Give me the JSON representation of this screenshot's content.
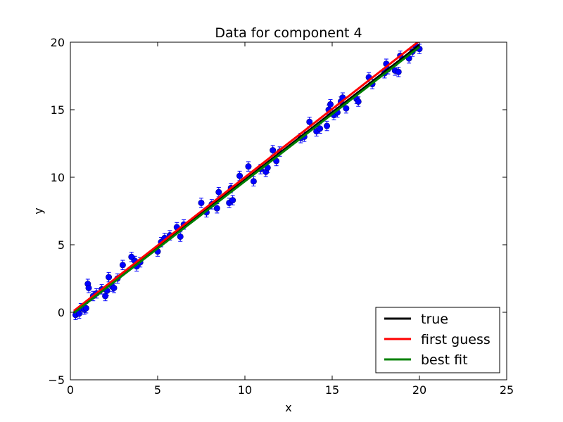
{
  "chart_data": {
    "type": "scatter",
    "title": "Data for component 4",
    "xlabel": "x",
    "ylabel": "y",
    "xlim": [
      0,
      25
    ],
    "ylim": [
      -5,
      20
    ],
    "xticks": [
      0,
      5,
      10,
      15,
      20,
      25
    ],
    "yticks": [
      -5,
      0,
      5,
      10,
      15,
      20
    ],
    "grid": false,
    "legend_position": "bottom-right",
    "colors": {
      "data": "#0000ff",
      "true": "#000000",
      "first_guess": "#ff0000",
      "best_fit": "#008000"
    },
    "lines": [
      {
        "key": "true",
        "name": "true",
        "x": [
          0.2,
          20.0
        ],
        "y": [
          0.0,
          19.8
        ]
      },
      {
        "key": "first_guess",
        "name": "first guess",
        "x": [
          0.2,
          20.0
        ],
        "y": [
          0.1,
          20.1
        ]
      },
      {
        "key": "best_fit",
        "name": "best fit",
        "x": [
          0.2,
          20.0
        ],
        "y": [
          -0.05,
          19.65
        ]
      }
    ],
    "data_series": {
      "yerr": 0.35,
      "points": [
        [
          0.3,
          -0.2
        ],
        [
          0.5,
          -0.1
        ],
        [
          0.6,
          0.3
        ],
        [
          0.8,
          0.2
        ],
        [
          0.9,
          0.3
        ],
        [
          1.0,
          2.1
        ],
        [
          1.05,
          1.8
        ],
        [
          1.3,
          1.2
        ],
        [
          1.5,
          1.4
        ],
        [
          1.8,
          1.7
        ],
        [
          2.0,
          1.2
        ],
        [
          2.1,
          1.6
        ],
        [
          2.2,
          2.6
        ],
        [
          2.4,
          1.9
        ],
        [
          2.5,
          1.8
        ],
        [
          2.7,
          2.5
        ],
        [
          3.0,
          3.5
        ],
        [
          3.5,
          4.1
        ],
        [
          3.7,
          3.8
        ],
        [
          3.8,
          3.4
        ],
        [
          4.0,
          3.7
        ],
        [
          5.0,
          4.5
        ],
        [
          5.2,
          5.2
        ],
        [
          5.4,
          5.5
        ],
        [
          5.7,
          5.7
        ],
        [
          6.1,
          6.3
        ],
        [
          6.3,
          5.6
        ],
        [
          6.5,
          6.5
        ],
        [
          7.5,
          8.1
        ],
        [
          7.8,
          7.4
        ],
        [
          8.1,
          8.0
        ],
        [
          8.4,
          7.7
        ],
        [
          8.5,
          8.9
        ],
        [
          9.1,
          8.1
        ],
        [
          9.2,
          9.2
        ],
        [
          9.3,
          8.3
        ],
        [
          9.7,
          10.1
        ],
        [
          10.2,
          10.8
        ],
        [
          10.5,
          9.7
        ],
        [
          10.9,
          10.6
        ],
        [
          11.2,
          10.4
        ],
        [
          11.3,
          10.7
        ],
        [
          11.6,
          12.0
        ],
        [
          11.8,
          11.2
        ],
        [
          12.0,
          11.9
        ],
        [
          13.2,
          12.9
        ],
        [
          13.4,
          13.0
        ],
        [
          13.7,
          14.1
        ],
        [
          14.1,
          13.4
        ],
        [
          14.3,
          13.6
        ],
        [
          14.7,
          13.8
        ],
        [
          14.8,
          15.0
        ],
        [
          14.9,
          15.4
        ],
        [
          15.1,
          14.6
        ],
        [
          15.3,
          14.8
        ],
        [
          15.5,
          15.6
        ],
        [
          15.6,
          15.9
        ],
        [
          15.8,
          15.1
        ],
        [
          16.4,
          15.8
        ],
        [
          16.5,
          15.6
        ],
        [
          17.1,
          17.4
        ],
        [
          17.3,
          16.9
        ],
        [
          18.0,
          17.7
        ],
        [
          18.1,
          18.4
        ],
        [
          18.2,
          18.0
        ],
        [
          18.6,
          17.9
        ],
        [
          18.8,
          17.8
        ],
        [
          18.9,
          19.0
        ],
        [
          19.4,
          18.8
        ],
        [
          19.6,
          19.3
        ],
        [
          19.8,
          19.7
        ],
        [
          20.0,
          19.5
        ]
      ]
    }
  }
}
